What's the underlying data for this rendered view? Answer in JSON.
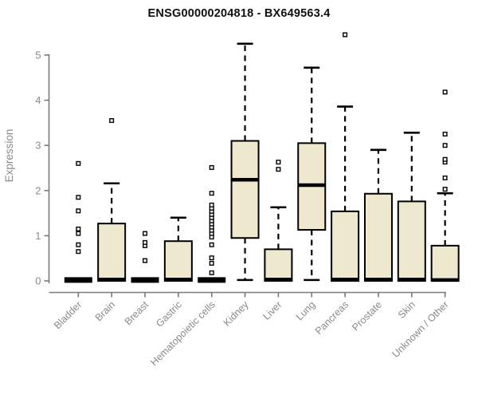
{
  "chart_data": {
    "type": "boxplot",
    "title": "ENSG00000204818 - BX649563.4",
    "ylabel": "Expression",
    "xlabel": "",
    "ylim": [
      0,
      5.5
    ],
    "yticks": [
      0,
      1,
      2,
      3,
      4,
      5
    ],
    "grid": false,
    "legend": null,
    "categories": [
      "Bladder",
      "Brain",
      "Breast",
      "Gastric",
      "Hematopoietic cells",
      "Kidney",
      "Liver",
      "Lung",
      "Pancreas",
      "Prostate",
      "Skin",
      "Unknown / Other"
    ],
    "series": [
      {
        "name": "Bladder",
        "q1": 0,
        "median": 0.02,
        "q3": 0.04,
        "whisker_low": 0,
        "whisker_high": 0.04,
        "outliers": [
          0.65,
          0.8,
          1.05,
          1.15,
          1.55,
          1.85,
          2.6
        ]
      },
      {
        "name": "Brain",
        "q1": 0,
        "median": 0.03,
        "q3": 1.27,
        "whisker_low": 0,
        "whisker_high": 2.16,
        "outliers": [
          3.55
        ]
      },
      {
        "name": "Breast",
        "q1": 0,
        "median": 0.02,
        "q3": 0.04,
        "whisker_low": 0,
        "whisker_high": 0.04,
        "outliers": [
          0.45,
          0.78,
          0.85,
          1.05
        ]
      },
      {
        "name": "Gastric",
        "q1": 0,
        "median": 0.03,
        "q3": 0.88,
        "whisker_low": 0,
        "whisker_high": 1.4,
        "outliers": []
      },
      {
        "name": "Hematopoietic cells",
        "q1": 0,
        "median": 0.02,
        "q3": 0.04,
        "whisker_low": 0,
        "whisker_high": 0.04,
        "outliers": [
          0.18,
          0.39,
          0.51,
          0.8,
          0.97,
          1.05,
          1.12,
          1.19,
          1.26,
          1.33,
          1.4,
          1.47,
          1.54,
          1.61,
          1.68,
          1.94,
          2.51
        ]
      },
      {
        "name": "Kidney",
        "q1": 0.95,
        "median": 2.24,
        "q3": 3.1,
        "whisker_low": 0.02,
        "whisker_high": 5.25,
        "outliers": []
      },
      {
        "name": "Liver",
        "q1": 0,
        "median": 0.03,
        "q3": 0.7,
        "whisker_low": 0,
        "whisker_high": 1.63,
        "outliers": [
          2.47,
          2.63
        ]
      },
      {
        "name": "Lung",
        "q1": 1.13,
        "median": 2.12,
        "q3": 3.05,
        "whisker_low": 0.02,
        "whisker_high": 4.72,
        "outliers": []
      },
      {
        "name": "Pancreas",
        "q1": 0,
        "median": 0.03,
        "q3": 1.54,
        "whisker_low": 0,
        "whisker_high": 3.86,
        "outliers": [
          5.45
        ]
      },
      {
        "name": "Prostate",
        "q1": 0,
        "median": 0.03,
        "q3": 1.93,
        "whisker_low": 0,
        "whisker_high": 2.9,
        "outliers": []
      },
      {
        "name": "Skin",
        "q1": 0,
        "median": 0.03,
        "q3": 1.76,
        "whisker_low": 0,
        "whisker_high": 3.28,
        "outliers": []
      },
      {
        "name": "Unknown / Other",
        "q1": 0,
        "median": 0.02,
        "q3": 0.78,
        "whisker_low": 0,
        "whisker_high": 1.94,
        "outliers": [
          2.03,
          2.28,
          2.63,
          2.69,
          3.0,
          3.25,
          4.18
        ]
      }
    ]
  },
  "colors": {
    "background": "#ffffff",
    "box_fill": "#ede8ce",
    "box_border": "#000000",
    "median": "#000000",
    "whisker": "#000000",
    "outlier_stroke": "#000000",
    "outlier_fill": "#ffffff",
    "axis_line": "#7a7a7a",
    "tick_label": "#8a8a8a",
    "axis_title": "#8a8a8a",
    "title": "#111111"
  }
}
